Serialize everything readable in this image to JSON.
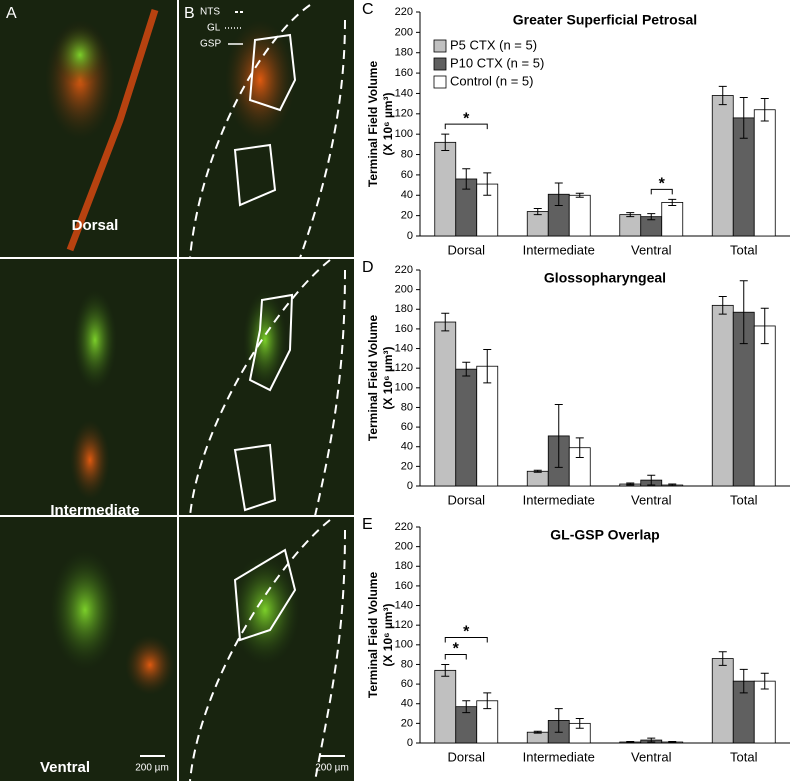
{
  "image_panels": {
    "panel_a": "A",
    "panel_b": "B",
    "levels": [
      "Dorsal",
      "Intermediate",
      "Ventral"
    ],
    "scale_bar": "200 µm",
    "outline_legend": [
      "NTS",
      "GL",
      "GSP"
    ]
  },
  "chart_data": [
    {
      "type": "bar",
      "panel_label": "C",
      "title": "Greater Superficial Petrosal",
      "y_label": [
        "Terminal Field Volume",
        "(X 10⁶ µm³)"
      ],
      "categories": [
        "Dorsal",
        "Intermediate",
        "Ventral",
        "Total"
      ],
      "series": [
        {
          "name": "P5 CTX (n = 5)",
          "color": "#c0c0c0",
          "values": [
            92,
            24,
            21,
            138
          ],
          "errors": [
            8,
            3,
            2,
            9
          ]
        },
        {
          "name": "P10 CTX (n = 5)",
          "color": "#606060",
          "values": [
            56,
            41,
            19,
            116
          ],
          "errors": [
            10,
            11,
            3,
            20
          ]
        },
        {
          "name": "Control (n = 5)",
          "color": "#ffffff",
          "values": [
            51,
            40,
            33,
            124
          ],
          "errors": [
            11,
            2,
            3,
            11
          ]
        }
      ],
      "annotations": [
        {
          "text": "*",
          "category": 0,
          "between": [
            0,
            2
          ]
        },
        {
          "text": "*",
          "category": 2,
          "between": [
            1,
            2
          ]
        }
      ],
      "ylim": [
        0,
        220
      ],
      "yticks": [
        0,
        20,
        40,
        60,
        80,
        100,
        120,
        140,
        160,
        180,
        200,
        220
      ],
      "legend": true
    },
    {
      "type": "bar",
      "panel_label": "D",
      "title": "Glossopharyngeal",
      "y_label": [
        "Terminal Field Volume",
        "(X 10⁶ µm³)"
      ],
      "categories": [
        "Dorsal",
        "Intermediate",
        "Ventral",
        "Total"
      ],
      "series": [
        {
          "name": "P5 CTX (n = 5)",
          "color": "#c0c0c0",
          "values": [
            167,
            15,
            2,
            184
          ],
          "errors": [
            9,
            1,
            1,
            9
          ]
        },
        {
          "name": "P10 CTX (n = 5)",
          "color": "#606060",
          "values": [
            119,
            51,
            6,
            177
          ],
          "errors": [
            7,
            32,
            5,
            32
          ]
        },
        {
          "name": "Control (n = 5)",
          "color": "#ffffff",
          "values": [
            122,
            39,
            1,
            163
          ],
          "errors": [
            17,
            10,
            1,
            18
          ]
        }
      ],
      "annotations": [],
      "ylim": [
        0,
        220
      ],
      "yticks": [
        0,
        20,
        40,
        60,
        80,
        100,
        120,
        140,
        160,
        180,
        200,
        220
      ],
      "legend": false
    },
    {
      "type": "bar",
      "panel_label": "E",
      "title": "GL-GSP Overlap",
      "y_label": [
        "Terminal Field Volume",
        "(X 10⁶ µm³)"
      ],
      "categories": [
        "Dorsal",
        "Intermediate",
        "Ventral",
        "Total"
      ],
      "series": [
        {
          "name": "P5 CTX (n = 5)",
          "color": "#c0c0c0",
          "values": [
            74,
            11,
            1,
            86
          ],
          "errors": [
            6,
            1,
            0.5,
            7
          ]
        },
        {
          "name": "P10 CTX (n = 5)",
          "color": "#606060",
          "values": [
            37,
            23,
            3,
            63
          ],
          "errors": [
            6,
            12,
            2,
            12
          ]
        },
        {
          "name": "Control (n = 5)",
          "color": "#ffffff",
          "values": [
            43,
            20,
            1,
            63
          ],
          "errors": [
            8,
            5,
            0.5,
            8
          ]
        }
      ],
      "annotations": [
        {
          "text": "*",
          "category": 0,
          "between": [
            0,
            1
          ]
        },
        {
          "text": "*",
          "category": 0,
          "between": [
            0,
            2
          ]
        }
      ],
      "ylim": [
        0,
        220
      ],
      "yticks": [
        0,
        20,
        40,
        60,
        80,
        100,
        120,
        140,
        160,
        180,
        200,
        220
      ],
      "legend": false
    }
  ]
}
